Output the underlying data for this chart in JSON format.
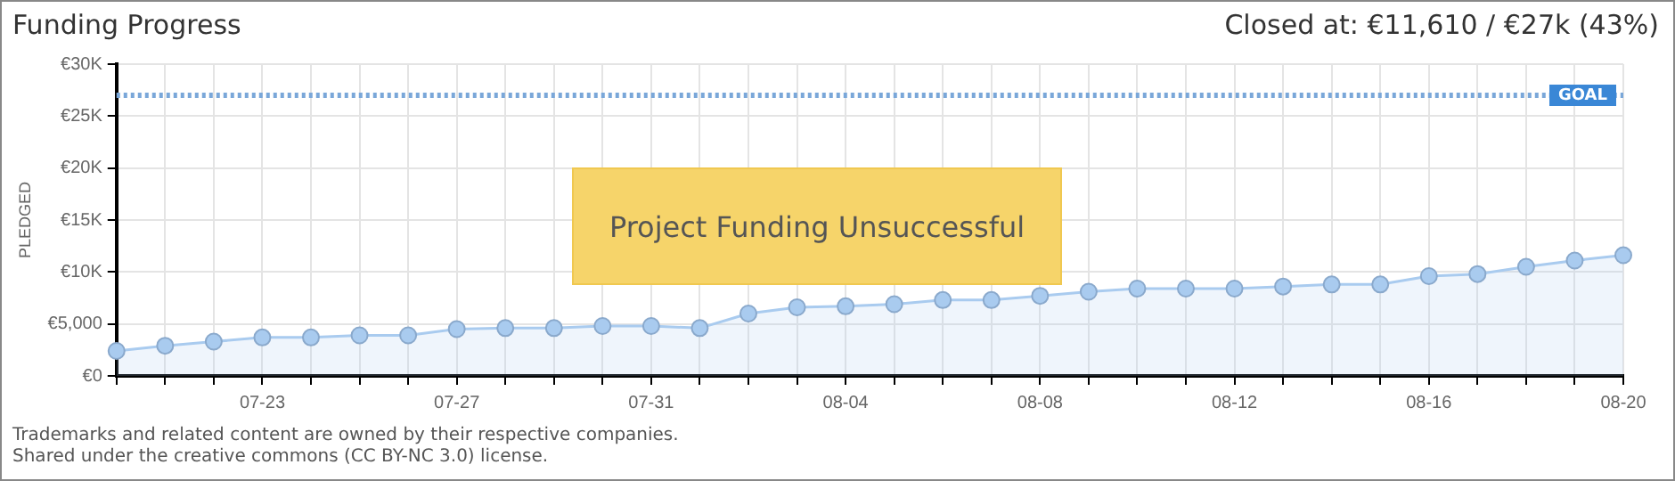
{
  "chart_data": {
    "type": "area",
    "title": "Funding Progress",
    "subtitle": "Closed at: €11,610 / €27k (43%)",
    "ylabel": "PLEDGED",
    "categories": [
      null,
      null,
      null,
      "07-23",
      null,
      null,
      null,
      "07-27",
      null,
      null,
      null,
      "07-31",
      null,
      null,
      null,
      "08-04",
      null,
      null,
      null,
      "08-08",
      null,
      null,
      null,
      "08-12",
      null,
      null,
      null,
      "08-16",
      null,
      null,
      null,
      "08-20"
    ],
    "series": [
      {
        "color": "#a9cbef",
        "values": [
          2400,
          2900,
          3300,
          3700,
          3700,
          3900,
          3900,
          4500,
          4600,
          4600,
          4800,
          4800,
          4600,
          6000,
          6600,
          6700,
          6900,
          7300,
          7300,
          7700,
          8100,
          8400,
          8400,
          8400,
          8600,
          8800,
          8800,
          9600,
          9800,
          10500,
          11100,
          11610
        ]
      }
    ],
    "ylim": [
      0,
      30000
    ],
    "yticks": [
      {
        "value": 0,
        "label": "€0"
      },
      {
        "value": 5000,
        "label": "€5,000"
      },
      {
        "value": 10000,
        "label": "€10K"
      },
      {
        "value": 15000,
        "label": "€15K"
      },
      {
        "value": 20000,
        "label": "€20K"
      },
      {
        "value": 25000,
        "label": "€25K"
      },
      {
        "value": 30000,
        "label": "€30K"
      }
    ],
    "ref_lines": [
      {
        "axis": "y",
        "value": 27000,
        "label": "GOAL",
        "color": "#7aa7d9",
        "line_style": "dotted"
      }
    ],
    "annotations": [
      "Project Funding Unsuccessful",
      "Trademarks and related content are owned by their respective companies.",
      "Shared under the creative commons (CC BY-NC 3.0) license."
    ],
    "grid": true,
    "legend": false,
    "marker": "circle",
    "line_style": "solid"
  }
}
